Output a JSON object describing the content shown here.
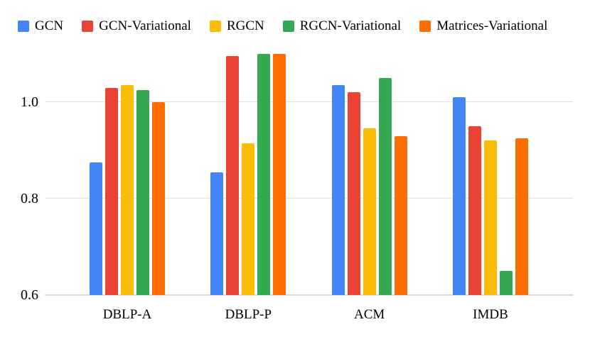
{
  "chart_data": {
    "type": "bar",
    "title": "",
    "xlabel": "",
    "ylabel": "",
    "categories": [
      "DBLP-A",
      "DBLP-P",
      "ACM",
      "IMDB"
    ],
    "series": [
      {
        "name": "GCN",
        "color": "#4285F4",
        "values": [
          0.875,
          0.855,
          1.035,
          1.01
        ]
      },
      {
        "name": "GCN-Variational",
        "color": "#EA4335",
        "values": [
          1.03,
          1.095,
          1.02,
          0.95
        ]
      },
      {
        "name": "RGCN",
        "color": "#FBBC04",
        "values": [
          1.035,
          0.915,
          0.945,
          0.92
        ]
      },
      {
        "name": "RGCN-Variational",
        "color": "#34A853",
        "values": [
          1.025,
          1.1,
          1.05,
          0.65
        ]
      },
      {
        "name": "Matrices-Variational",
        "color": "#FF6D01",
        "values": [
          1.0,
          1.1,
          0.93,
          0.925
        ]
      }
    ],
    "ylim": [
      0.6,
      1.1
    ],
    "yticks": [
      "0.6",
      "0.8",
      "1.0"
    ],
    "grid": true,
    "legend_position": "top",
    "gridline_color": "#e3e3e3",
    "baseline_color": "#dadada",
    "text_color": "#000000"
  }
}
